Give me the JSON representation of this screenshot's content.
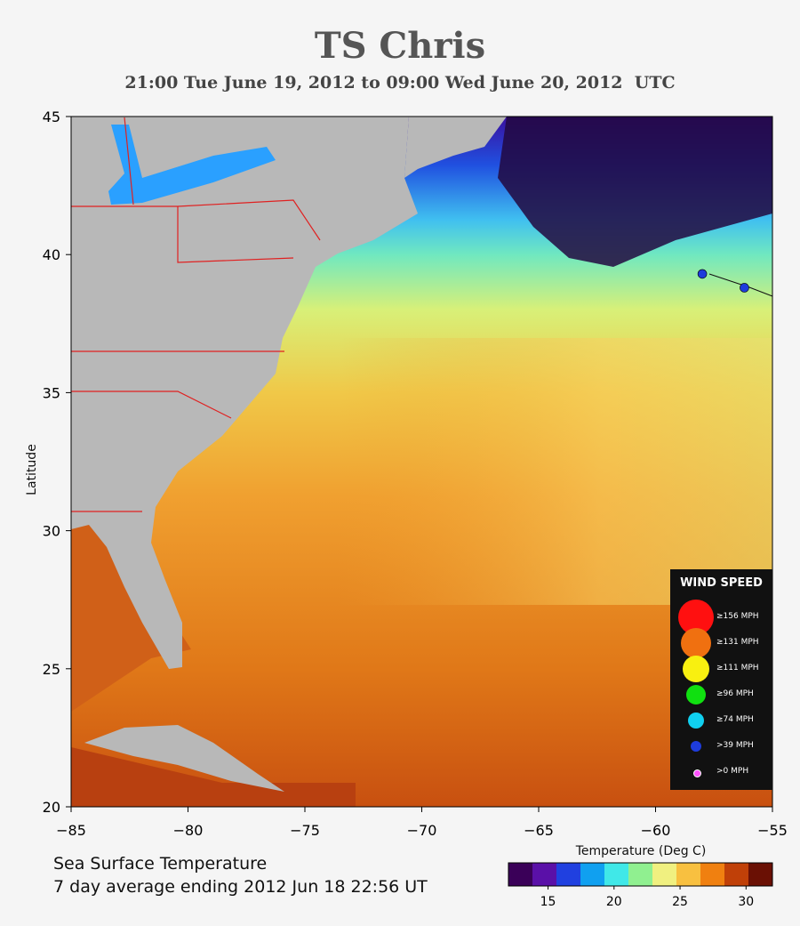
{
  "header": {
    "title": "TS Chris",
    "subtitle": "21:00 Tue June 19, 2012 to 09:00 Wed June 20, 2012  UTC"
  },
  "map": {
    "ylabel": "Latitude",
    "lon_range": [
      -85,
      -55
    ],
    "lat_range": [
      20,
      45
    ],
    "x_ticks": [
      "−85",
      "−80",
      "−75",
      "−70",
      "−65",
      "−60",
      "−55"
    ],
    "y_ticks": [
      "45",
      "40",
      "35",
      "30",
      "25",
      "20"
    ],
    "track_points": [
      {
        "lon": -58,
        "lat": 39.3
      },
      {
        "lon": -56.2,
        "lat": 38.8
      }
    ],
    "colors": {
      "land": "#b8b8b8",
      "borders": "#e02020",
      "track": "#1e3cdc"
    }
  },
  "legend": {
    "title": "WIND SPEED",
    "items": [
      {
        "label": "≥156 MPH",
        "color": "#ff1010"
      },
      {
        "label": "≥131 MPH",
        "color": "#f07010"
      },
      {
        "label": "≥111 MPH",
        "color": "#f8f010"
      },
      {
        "label": "≥96 MPH",
        "color": "#10e010"
      },
      {
        "label": "≥74 MPH",
        "color": "#10d0f0"
      },
      {
        "label": ">39 MPH",
        "color": "#1e3cdc"
      },
      {
        "label": ">0 MPH",
        "color": "#ff50ff"
      }
    ]
  },
  "footer": {
    "line1": "Sea Surface Temperature",
    "line2": "7 day average ending 2012 Jun 18 22:56 UT"
  },
  "colorbar": {
    "label": "Temperature (Deg C)",
    "ticks": [
      "15",
      "20",
      "25",
      "30"
    ],
    "tick_values": [
      15,
      20,
      25,
      30
    ],
    "range": [
      12,
      32
    ],
    "stops": [
      "#3a0058",
      "#5a10a8",
      "#2040e0",
      "#10a0f0",
      "#40e8e8",
      "#90f090",
      "#f0f080",
      "#f8c040",
      "#f08010",
      "#c04008",
      "#6a1004"
    ]
  }
}
